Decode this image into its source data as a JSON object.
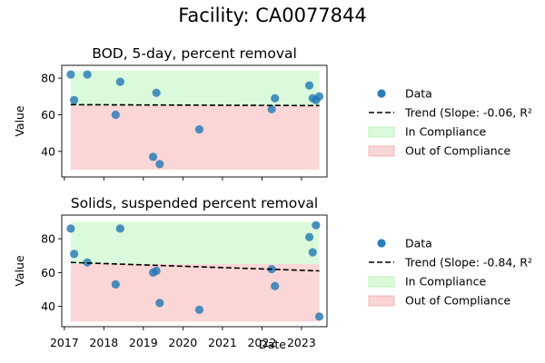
{
  "figure": {
    "title": "Facility: CA0077844"
  },
  "chart_data": [
    {
      "type": "scatter",
      "title": "BOD, 5-day, percent removal",
      "xlabel": "Date",
      "ylabel": "Value",
      "xlim": [
        "2016-12-08",
        "2023-08-25"
      ],
      "ylim": [
        26,
        87
      ],
      "x_ticks": [
        "2017",
        "2018",
        "2019",
        "2020",
        "2021",
        "2022",
        "2023"
      ],
      "y_ticks": [
        40,
        60,
        80
      ],
      "compliance": {
        "in": [
          65,
          84
        ],
        "out": [
          30,
          65
        ],
        "x_range": [
          "2017-03-01",
          "2023-06-15"
        ]
      },
      "series": [
        {
          "name": "Data",
          "color": "#1f77b4",
          "points": [
            [
              "2017-03-01",
              82
            ],
            [
              "2017-04-01",
              68
            ],
            [
              "2017-08-01",
              82
            ],
            [
              "2018-04-20",
              60
            ],
            [
              "2018-06-01",
              78
            ],
            [
              "2019-04-01",
              37
            ],
            [
              "2019-05-01",
              72
            ],
            [
              "2019-06-01",
              33
            ],
            [
              "2020-06-01",
              52
            ],
            [
              "2022-04-01",
              63
            ],
            [
              "2022-05-01",
              69
            ],
            [
              "2023-03-15",
              76
            ],
            [
              "2023-04-15",
              69
            ],
            [
              "2023-05-15",
              68
            ],
            [
              "2023-06-15",
              70
            ]
          ]
        },
        {
          "name": "Trend (Slope: -0.06, R²",
          "color": "#000000",
          "line": [
            [
              "2017-03-01",
              65.5
            ],
            [
              "2023-06-15",
              65.0
            ]
          ]
        }
      ],
      "legend": {
        "placement": "right",
        "entries": [
          "Data",
          "Trend (Slope: -0.06, R²",
          "In Compliance",
          "Out of Compliance"
        ]
      }
    },
    {
      "type": "scatter",
      "title": "Solids, suspended percent removal",
      "xlabel": "Date",
      "ylabel": "Value",
      "xlim": [
        "2016-12-08",
        "2023-08-25"
      ],
      "ylim": [
        28,
        94
      ],
      "x_ticks": [
        "2017",
        "2018",
        "2019",
        "2020",
        "2021",
        "2022",
        "2023"
      ],
      "y_ticks": [
        40,
        60,
        80
      ],
      "compliance": {
        "in": [
          65,
          90
        ],
        "out": [
          31,
          65
        ],
        "x_range": [
          "2017-03-01",
          "2023-06-15"
        ]
      },
      "series": [
        {
          "name": "Data",
          "color": "#1f77b4",
          "points": [
            [
              "2017-03-01",
              86
            ],
            [
              "2017-04-01",
              71
            ],
            [
              "2017-08-01",
              66
            ],
            [
              "2018-04-20",
              53
            ],
            [
              "2018-06-01",
              86
            ],
            [
              "2019-04-01",
              60
            ],
            [
              "2019-05-01",
              61
            ],
            [
              "2019-06-01",
              42
            ],
            [
              "2020-06-01",
              38
            ],
            [
              "2022-04-01",
              62
            ],
            [
              "2022-05-01",
              52
            ],
            [
              "2023-03-15",
              81
            ],
            [
              "2023-04-15",
              72
            ],
            [
              "2023-05-15",
              88
            ],
            [
              "2023-06-15",
              34
            ]
          ]
        },
        {
          "name": "Trend (Slope: -0.84, R²",
          "color": "#000000",
          "line": [
            [
              "2017-03-01",
              66.0
            ],
            [
              "2023-06-15",
              61.0
            ]
          ]
        }
      ],
      "legend": {
        "placement": "right",
        "entries": [
          "Data",
          "Trend (Slope: -0.84, R²",
          "In Compliance",
          "Out of Compliance"
        ]
      }
    }
  ]
}
